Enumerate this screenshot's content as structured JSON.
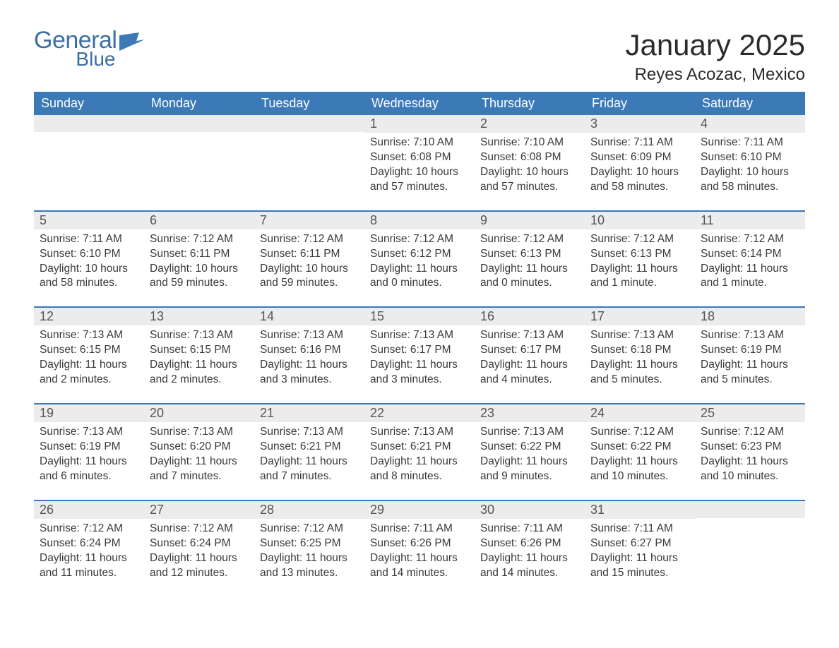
{
  "brand": {
    "general": "General",
    "blue": "Blue",
    "flag_color": "#3b79b7"
  },
  "title": "January 2025",
  "location": "Reyes Acozac, Mexico",
  "colors": {
    "header_bg": "#3b79b7",
    "header_text": "#ffffff",
    "daynum_bg": "#ececec",
    "text": "#3a3a3a",
    "rule": "#3b79b7",
    "page_bg": "#ffffff"
  },
  "typography": {
    "title_fontsize": 42,
    "location_fontsize": 24,
    "header_fontsize": 18,
    "body_fontsize": 15.5
  },
  "weekdays": [
    "Sunday",
    "Monday",
    "Tuesday",
    "Wednesday",
    "Thursday",
    "Friday",
    "Saturday"
  ],
  "weeks": [
    [
      {
        "n": "",
        "lines": []
      },
      {
        "n": "",
        "lines": []
      },
      {
        "n": "",
        "lines": []
      },
      {
        "n": "1",
        "lines": [
          "Sunrise: 7:10 AM",
          "Sunset: 6:08 PM",
          "Daylight: 10 hours and 57 minutes."
        ]
      },
      {
        "n": "2",
        "lines": [
          "Sunrise: 7:10 AM",
          "Sunset: 6:08 PM",
          "Daylight: 10 hours and 57 minutes."
        ]
      },
      {
        "n": "3",
        "lines": [
          "Sunrise: 7:11 AM",
          "Sunset: 6:09 PM",
          "Daylight: 10 hours and 58 minutes."
        ]
      },
      {
        "n": "4",
        "lines": [
          "Sunrise: 7:11 AM",
          "Sunset: 6:10 PM",
          "Daylight: 10 hours and 58 minutes."
        ]
      }
    ],
    [
      {
        "n": "5",
        "lines": [
          "Sunrise: 7:11 AM",
          "Sunset: 6:10 PM",
          "Daylight: 10 hours and 58 minutes."
        ]
      },
      {
        "n": "6",
        "lines": [
          "Sunrise: 7:12 AM",
          "Sunset: 6:11 PM",
          "Daylight: 10 hours and 59 minutes."
        ]
      },
      {
        "n": "7",
        "lines": [
          "Sunrise: 7:12 AM",
          "Sunset: 6:11 PM",
          "Daylight: 10 hours and 59 minutes."
        ]
      },
      {
        "n": "8",
        "lines": [
          "Sunrise: 7:12 AM",
          "Sunset: 6:12 PM",
          "Daylight: 11 hours and 0 minutes."
        ]
      },
      {
        "n": "9",
        "lines": [
          "Sunrise: 7:12 AM",
          "Sunset: 6:13 PM",
          "Daylight: 11 hours and 0 minutes."
        ]
      },
      {
        "n": "10",
        "lines": [
          "Sunrise: 7:12 AM",
          "Sunset: 6:13 PM",
          "Daylight: 11 hours and 1 minute."
        ]
      },
      {
        "n": "11",
        "lines": [
          "Sunrise: 7:12 AM",
          "Sunset: 6:14 PM",
          "Daylight: 11 hours and 1 minute."
        ]
      }
    ],
    [
      {
        "n": "12",
        "lines": [
          "Sunrise: 7:13 AM",
          "Sunset: 6:15 PM",
          "Daylight: 11 hours and 2 minutes."
        ]
      },
      {
        "n": "13",
        "lines": [
          "Sunrise: 7:13 AM",
          "Sunset: 6:15 PM",
          "Daylight: 11 hours and 2 minutes."
        ]
      },
      {
        "n": "14",
        "lines": [
          "Sunrise: 7:13 AM",
          "Sunset: 6:16 PM",
          "Daylight: 11 hours and 3 minutes."
        ]
      },
      {
        "n": "15",
        "lines": [
          "Sunrise: 7:13 AM",
          "Sunset: 6:17 PM",
          "Daylight: 11 hours and 3 minutes."
        ]
      },
      {
        "n": "16",
        "lines": [
          "Sunrise: 7:13 AM",
          "Sunset: 6:17 PM",
          "Daylight: 11 hours and 4 minutes."
        ]
      },
      {
        "n": "17",
        "lines": [
          "Sunrise: 7:13 AM",
          "Sunset: 6:18 PM",
          "Daylight: 11 hours and 5 minutes."
        ]
      },
      {
        "n": "18",
        "lines": [
          "Sunrise: 7:13 AM",
          "Sunset: 6:19 PM",
          "Daylight: 11 hours and 5 minutes."
        ]
      }
    ],
    [
      {
        "n": "19",
        "lines": [
          "Sunrise: 7:13 AM",
          "Sunset: 6:19 PM",
          "Daylight: 11 hours and 6 minutes."
        ]
      },
      {
        "n": "20",
        "lines": [
          "Sunrise: 7:13 AM",
          "Sunset: 6:20 PM",
          "Daylight: 11 hours and 7 minutes."
        ]
      },
      {
        "n": "21",
        "lines": [
          "Sunrise: 7:13 AM",
          "Sunset: 6:21 PM",
          "Daylight: 11 hours and 7 minutes."
        ]
      },
      {
        "n": "22",
        "lines": [
          "Sunrise: 7:13 AM",
          "Sunset: 6:21 PM",
          "Daylight: 11 hours and 8 minutes."
        ]
      },
      {
        "n": "23",
        "lines": [
          "Sunrise: 7:13 AM",
          "Sunset: 6:22 PM",
          "Daylight: 11 hours and 9 minutes."
        ]
      },
      {
        "n": "24",
        "lines": [
          "Sunrise: 7:12 AM",
          "Sunset: 6:22 PM",
          "Daylight: 11 hours and 10 minutes."
        ]
      },
      {
        "n": "25",
        "lines": [
          "Sunrise: 7:12 AM",
          "Sunset: 6:23 PM",
          "Daylight: 11 hours and 10 minutes."
        ]
      }
    ],
    [
      {
        "n": "26",
        "lines": [
          "Sunrise: 7:12 AM",
          "Sunset: 6:24 PM",
          "Daylight: 11 hours and 11 minutes."
        ]
      },
      {
        "n": "27",
        "lines": [
          "Sunrise: 7:12 AM",
          "Sunset: 6:24 PM",
          "Daylight: 11 hours and 12 minutes."
        ]
      },
      {
        "n": "28",
        "lines": [
          "Sunrise: 7:12 AM",
          "Sunset: 6:25 PM",
          "Daylight: 11 hours and 13 minutes."
        ]
      },
      {
        "n": "29",
        "lines": [
          "Sunrise: 7:11 AM",
          "Sunset: 6:26 PM",
          "Daylight: 11 hours and 14 minutes."
        ]
      },
      {
        "n": "30",
        "lines": [
          "Sunrise: 7:11 AM",
          "Sunset: 6:26 PM",
          "Daylight: 11 hours and 14 minutes."
        ]
      },
      {
        "n": "31",
        "lines": [
          "Sunrise: 7:11 AM",
          "Sunset: 6:27 PM",
          "Daylight: 11 hours and 15 minutes."
        ]
      },
      {
        "n": "",
        "lines": []
      }
    ]
  ]
}
